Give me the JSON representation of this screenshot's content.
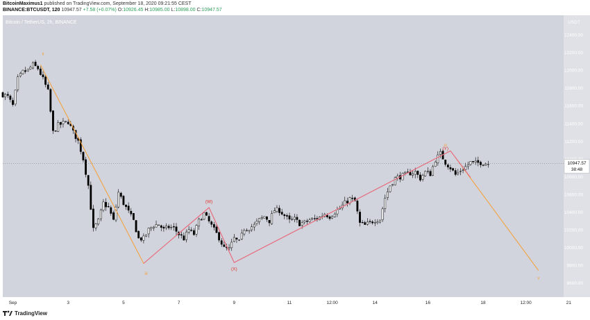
{
  "header": {
    "line1": {
      "author": "BitcoinMaximus1",
      "rest": "published on TradingView.com, September 18, 2020 09:21:55 CEST"
    },
    "line2": {
      "symbol": "BINANCE:BTCUSDT, 120",
      "last": "10947.57",
      "change": "+7.58 (+0.07%)",
      "o_label": "O:",
      "o": "10926.45",
      "h_label": "H:",
      "h": "10985.00",
      "l_label": "L:",
      "l": "10898.00",
      "c_label": "C:",
      "c": "10947.57"
    }
  },
  "footer": {
    "brand": "TradingView"
  },
  "chart_data": {
    "type": "candlestick",
    "title": "Bitcoin / TetherUS, 2h, BINANCE",
    "ylabel": "USDT",
    "ylim": [
      9440,
      12620
    ],
    "xlim": [
      0,
      223
    ],
    "yticks": [
      9600,
      9800,
      10000,
      10200,
      10400,
      10600,
      10800,
      11000,
      11200,
      11400,
      11600,
      11800,
      12000,
      12200,
      12400
    ],
    "ytick_labels": [
      "9600.00",
      "9800.00",
      "10000.00",
      "10200.00",
      "10400.00",
      "10600.00",
      "10800.00",
      "11000.00",
      "11200.00",
      "11400.00",
      "11600.00",
      "11800.00",
      "12000.00",
      "12200.00",
      "12400.00"
    ],
    "xticks": [
      {
        "x": 4,
        "label": "Sep"
      },
      {
        "x": 26,
        "label": "3"
      },
      {
        "x": 48,
        "label": "5"
      },
      {
        "x": 70,
        "label": "7"
      },
      {
        "x": 92,
        "label": "9"
      },
      {
        "x": 114,
        "label": "11"
      },
      {
        "x": 131,
        "label": "12:00"
      },
      {
        "x": 148,
        "label": "14"
      },
      {
        "x": 169,
        "label": "16"
      },
      {
        "x": 191,
        "label": "18"
      },
      {
        "x": 208,
        "label": "12:00"
      },
      {
        "x": 225,
        "label": "21"
      }
    ],
    "grid": false,
    "last_price": {
      "value": 10947.57,
      "label": "10947.57",
      "countdown": "38:48"
    },
    "anchors": [
      [
        0,
        11740
      ],
      [
        3,
        11700
      ],
      [
        5,
        11600
      ],
      [
        7,
        11900
      ],
      [
        9,
        11980
      ],
      [
        11,
        12000
      ],
      [
        13,
        12060
      ],
      [
        15,
        12020
      ],
      [
        17,
        11900
      ],
      [
        19,
        11760
      ],
      [
        21,
        11300
      ],
      [
        23,
        11380
      ],
      [
        25,
        11400
      ],
      [
        27,
        11420
      ],
      [
        29,
        11300
      ],
      [
        31,
        11200
      ],
      [
        33,
        11000
      ],
      [
        35,
        10700
      ],
      [
        37,
        10200
      ],
      [
        39,
        10300
      ],
      [
        41,
        10500
      ],
      [
        43,
        10450
      ],
      [
        45,
        10300
      ],
      [
        47,
        10620
      ],
      [
        49,
        10500
      ],
      [
        51,
        10400
      ],
      [
        53,
        10300
      ],
      [
        55,
        10100
      ],
      [
        57,
        10100
      ],
      [
        59,
        10200
      ],
      [
        61,
        10250
      ],
      [
        63,
        10260
      ],
      [
        65,
        10200
      ],
      [
        67,
        10230
      ],
      [
        69,
        10220
      ],
      [
        71,
        10150
      ],
      [
        73,
        10100
      ],
      [
        75,
        10200
      ],
      [
        77,
        10150
      ],
      [
        79,
        10300
      ],
      [
        81,
        10380
      ],
      [
        83,
        10290
      ],
      [
        85,
        10200
      ],
      [
        87,
        10110
      ],
      [
        89,
        9990
      ],
      [
        91,
        9980
      ],
      [
        93,
        10100
      ],
      [
        95,
        10060
      ],
      [
        97,
        10210
      ],
      [
        99,
        10220
      ],
      [
        101,
        10250
      ],
      [
        103,
        10310
      ],
      [
        105,
        10350
      ],
      [
        107,
        10300
      ],
      [
        109,
        10420
      ],
      [
        111,
        10420
      ],
      [
        113,
        10360
      ],
      [
        115,
        10300
      ],
      [
        117,
        10320
      ],
      [
        119,
        10270
      ],
      [
        121,
        10280
      ],
      [
        123,
        10310
      ],
      [
        125,
        10320
      ],
      [
        127,
        10340
      ],
      [
        129,
        10380
      ],
      [
        131,
        10350
      ],
      [
        133,
        10400
      ],
      [
        135,
        10440
      ],
      [
        137,
        10500
      ],
      [
        139,
        10550
      ],
      [
        141,
        10520
      ],
      [
        143,
        10270
      ],
      [
        145,
        10250
      ],
      [
        147,
        10280
      ],
      [
        149,
        10310
      ],
      [
        151,
        10320
      ],
      [
        153,
        10560
      ],
      [
        155,
        10700
      ],
      [
        157,
        10780
      ],
      [
        159,
        10800
      ],
      [
        161,
        10820
      ],
      [
        163,
        10840
      ],
      [
        165,
        10850
      ],
      [
        167,
        10780
      ],
      [
        169,
        10850
      ],
      [
        171,
        10830
      ],
      [
        173,
        10990
      ],
      [
        175,
        11060
      ],
      [
        177,
        10960
      ],
      [
        179,
        10900
      ],
      [
        181,
        10820
      ],
      [
        183,
        10870
      ],
      [
        185,
        10910
      ],
      [
        187,
        10960
      ],
      [
        189,
        10950
      ],
      [
        191,
        10960
      ],
      [
        193,
        10947.57
      ]
    ],
    "series": [
      {
        "name": "",
        "points": [
          [
            15,
            12060
          ],
          [
            56,
            9820
          ],
          [
            82,
            10450
          ],
          [
            92,
            9830
          ],
          [
            178,
            11090
          ],
          [
            213,
            9740
          ]
        ],
        "color": "#f4a340"
      },
      {
        "name": "",
        "points": [
          [
            56,
            9820
          ],
          [
            82,
            10450
          ],
          [
            92,
            9830
          ],
          [
            178,
            11090
          ]
        ],
        "color": "#e56a8c"
      },
      {
        "name": "",
        "points": [
          [
            178,
            11090
          ],
          [
            186,
            10790
          ]
        ],
        "color": "#e56a8c"
      }
    ],
    "annotations": [
      {
        "text": "ii",
        "x": 16,
        "y": 12170,
        "color": "#f4a340"
      },
      {
        "text": "iii",
        "x": 57,
        "y": 9690,
        "color": "#f4a340"
      },
      {
        "text": "iv",
        "x": 176,
        "y": 11140,
        "color": "#f4a340"
      },
      {
        "text": "(Y)",
        "x": 176,
        "y": 11100,
        "color": "#e0332a"
      },
      {
        "text": "(W)",
        "x": 82,
        "y": 10500,
        "color": "#e0332a"
      },
      {
        "text": "(X)",
        "x": 92,
        "y": 9740,
        "color": "#e0332a"
      },
      {
        "text": "v",
        "x": 213,
        "y": 9640,
        "color": "#f4a340"
      }
    ],
    "colors": {
      "background": "#d1d4dc",
      "axis": "#ffffff",
      "candle_up": "#ffffff",
      "candle_down": "#000000"
    }
  }
}
